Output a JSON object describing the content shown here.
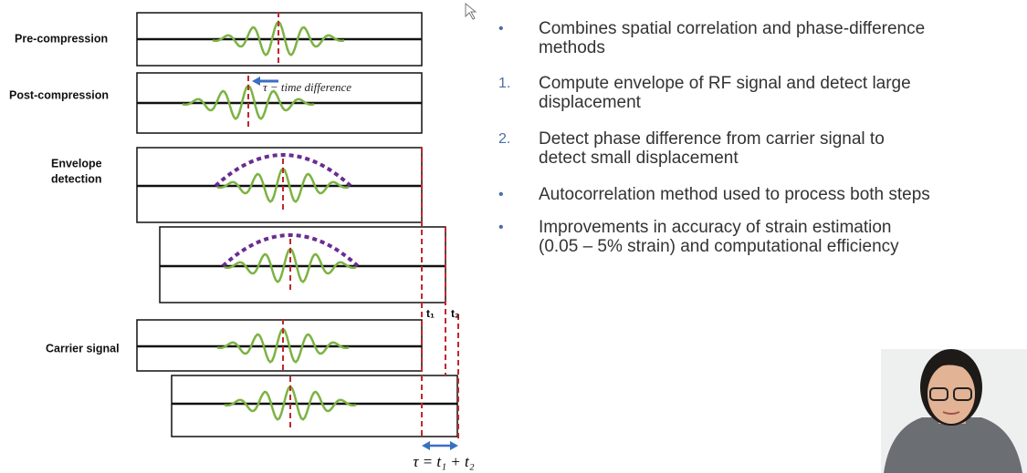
{
  "diagram": {
    "labels": {
      "pre_compression": "Pre-compression",
      "post_compression": "Post-compression",
      "time_difference": "τ − time difference",
      "envelope": "Envelope",
      "detection": "detection",
      "carrier": "Carrier signal",
      "t1": "t₁",
      "t2": "t₂",
      "tau_sum": "τ = t₁ + t₂"
    }
  },
  "bullets": [
    {
      "marker": "•",
      "lines": [
        "Combines spatial correlation and phase-difference",
        "methods"
      ]
    },
    {
      "marker": "1.",
      "lines": [
        "Compute envelope of RF signal and detect large",
        "displacement"
      ]
    },
    {
      "marker": "2.",
      "lines": [
        "Detect phase difference from carrier signal to",
        "detect small displacement"
      ]
    },
    {
      "marker": "•",
      "lines": [
        "Autocorrelation method used to process both steps"
      ]
    },
    {
      "marker": "•",
      "lines": [
        "Improvements in accuracy of strain estimation",
        "(0.05 – 5% strain) and computational efficiency"
      ]
    }
  ]
}
